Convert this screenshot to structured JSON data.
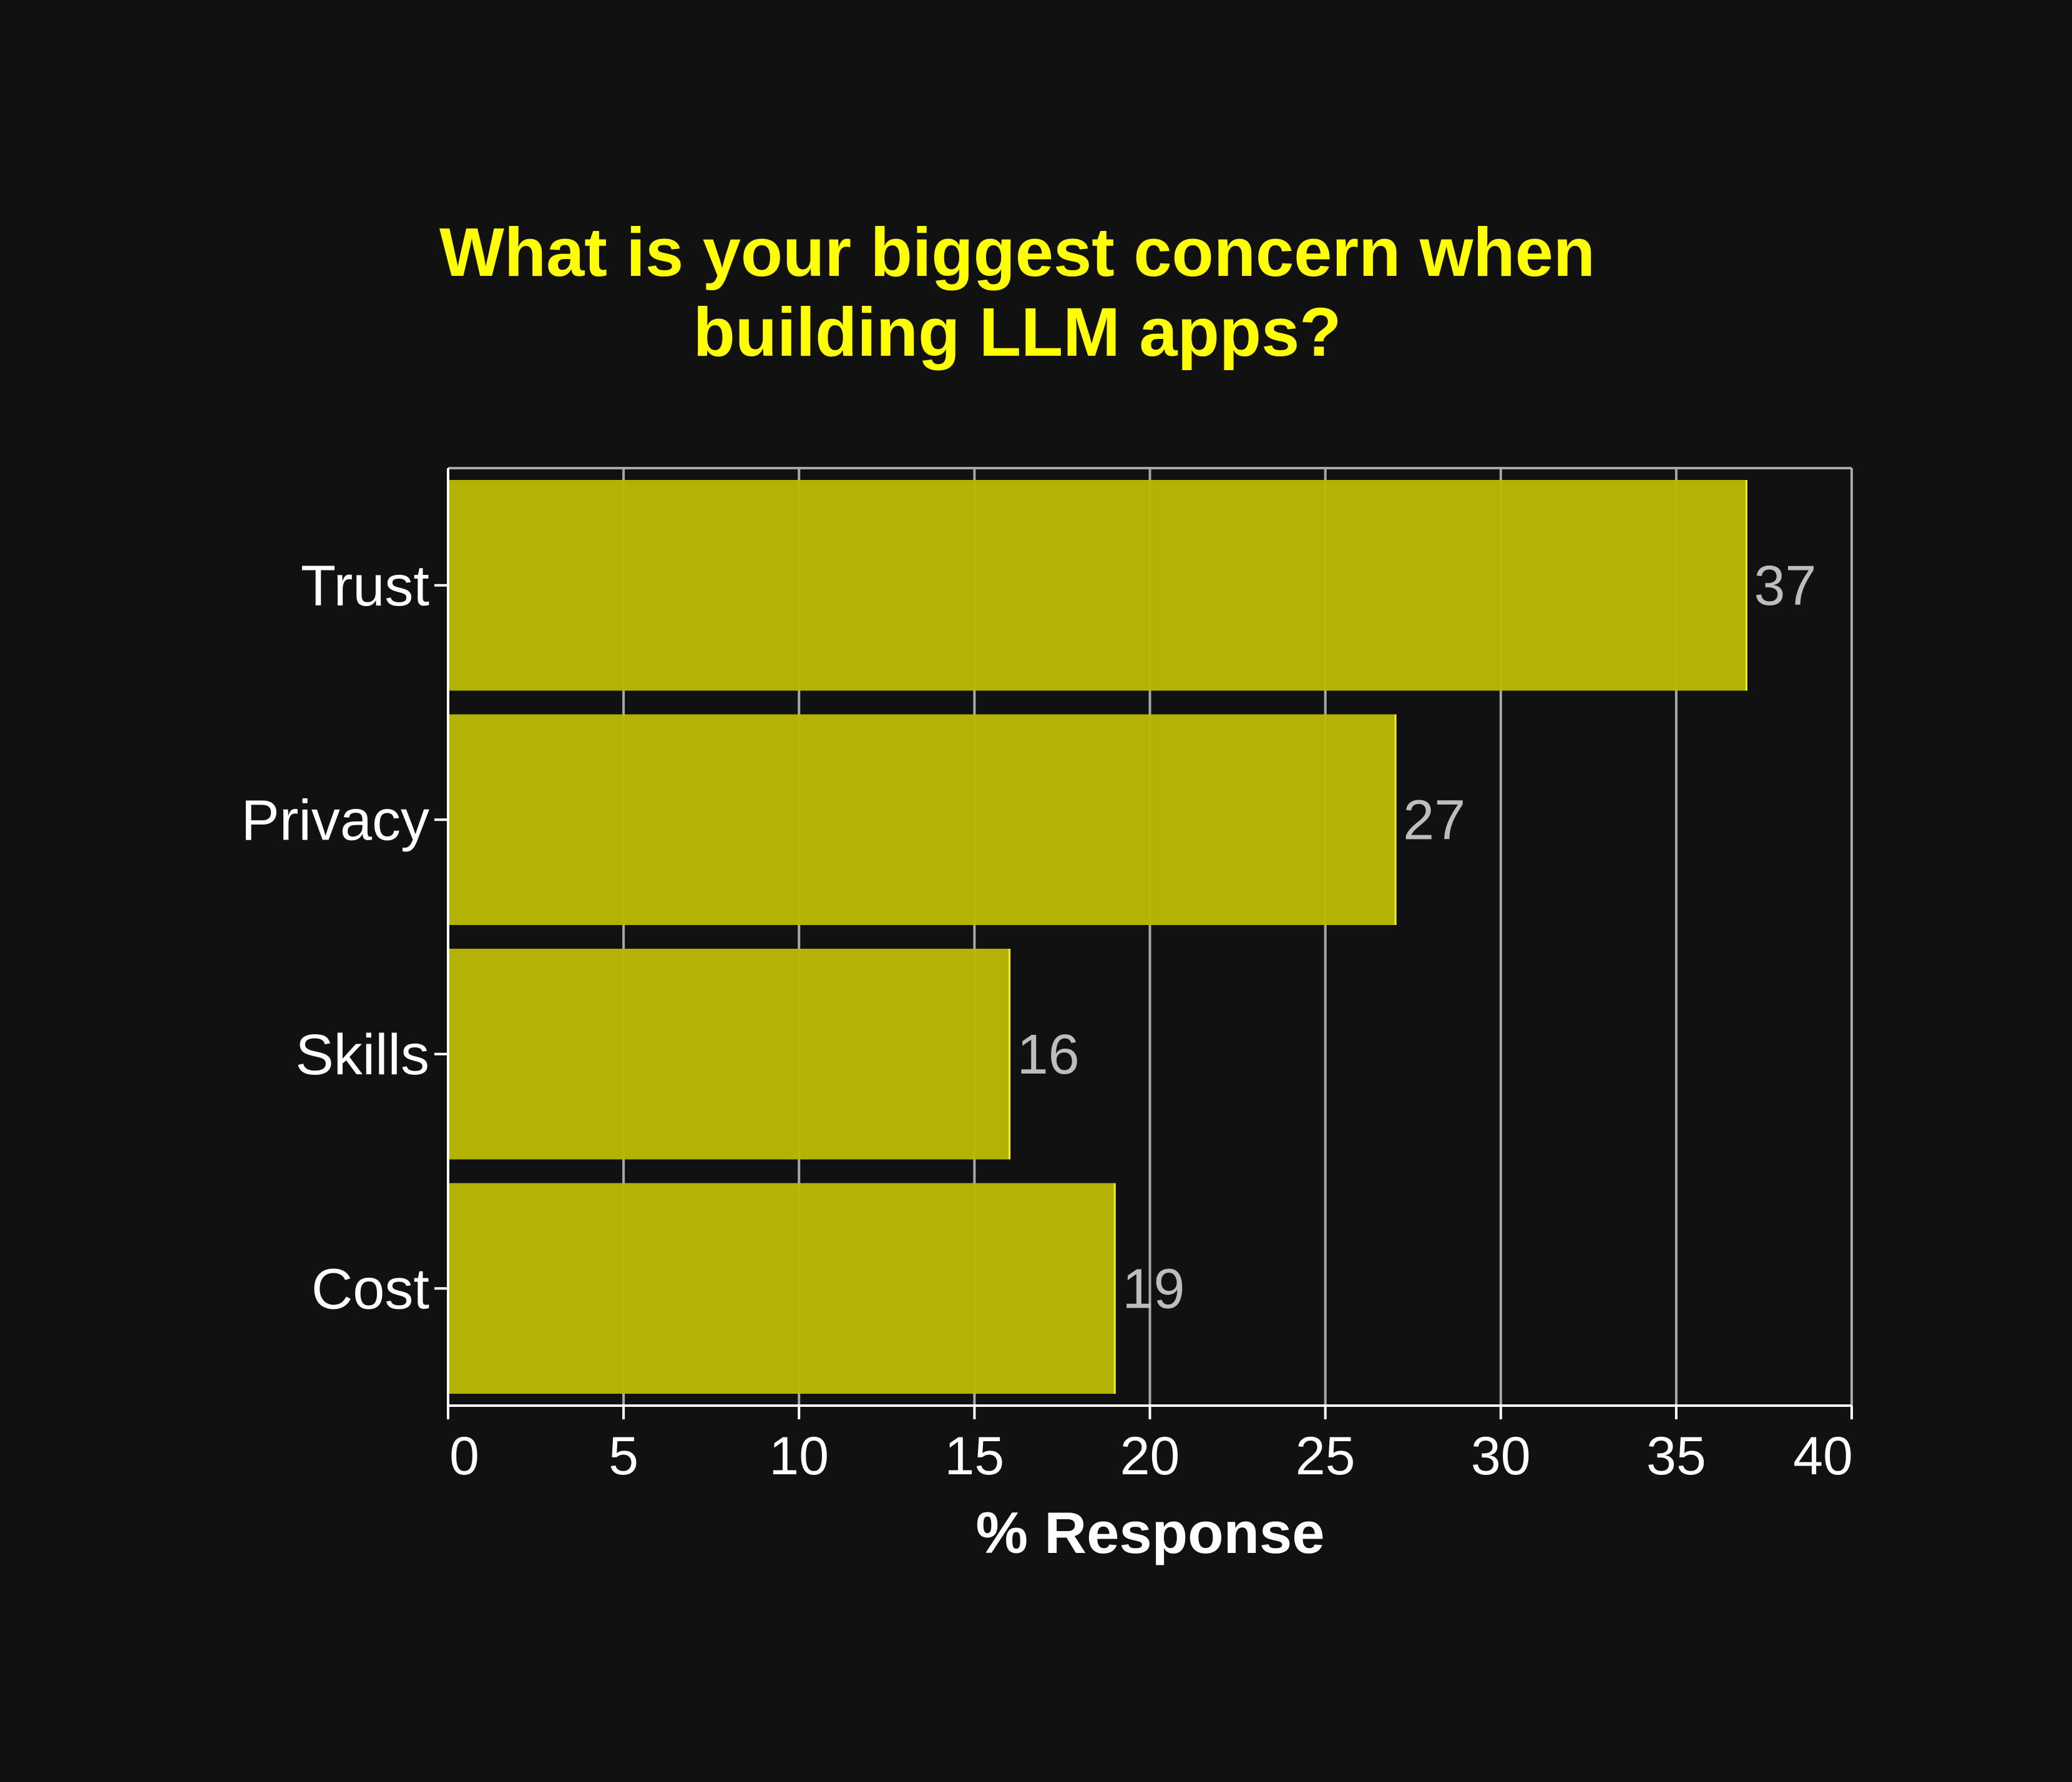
{
  "colors": {
    "background": "#111111",
    "bar_fill": "#b9b805",
    "bar_stroke": "#f2f02a",
    "title": "#ffff00",
    "grid": "#a8a8a8",
    "axis": "#ffffff",
    "data_label": "#bdbdbd"
  },
  "chart_data": {
    "type": "bar",
    "orientation": "horizontal",
    "title_lines": [
      "What is your biggest concern when",
      "building LLM apps?"
    ],
    "xlabel": "% Response",
    "ylabel": "",
    "categories": [
      "Trust",
      "Privacy",
      "Skills",
      "Cost"
    ],
    "values": [
      37,
      27,
      16,
      19
    ],
    "value_labels": [
      "37",
      "27",
      "16",
      "19"
    ],
    "xlim": [
      0,
      40
    ],
    "xticks": [
      0,
      5,
      10,
      15,
      20,
      25,
      30,
      35,
      40
    ],
    "xtick_labels": [
      "0",
      "5",
      "10",
      "15",
      "20",
      "25",
      "30",
      "35",
      "40"
    ],
    "grid": "vertical",
    "legend": "none"
  }
}
